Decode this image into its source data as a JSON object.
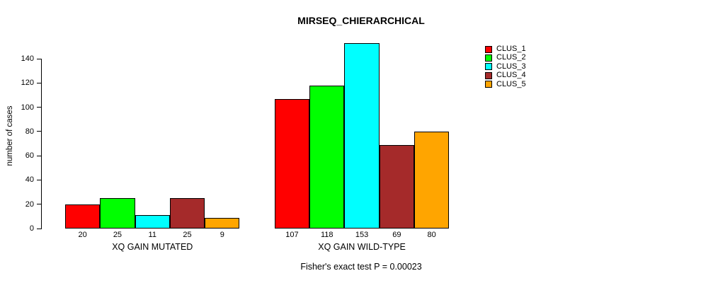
{
  "figure": {
    "title": "MIRSEQ_CHIERARCHICAL",
    "subtitle": "Fisher's exact test P = 0.00023",
    "ylabel": "number of cases"
  },
  "chart_data": {
    "type": "bar",
    "title": "MIRSEQ_CHIERARCHICAL",
    "ylabel": "number of cases",
    "xlabel": "",
    "categories": [
      "XQ GAIN MUTATED",
      "XQ GAIN WILD-TYPE"
    ],
    "series": [
      {
        "name": "CLUS_1",
        "color": "#FF0000",
        "values": [
          20,
          107
        ]
      },
      {
        "name": "CLUS_2",
        "color": "#00FF00",
        "values": [
          25,
          118
        ]
      },
      {
        "name": "CLUS_3",
        "color": "#00FFFF",
        "values": [
          11,
          153
        ]
      },
      {
        "name": "CLUS_4",
        "color": "#A52A2A",
        "values": [
          25,
          69
        ]
      },
      {
        "name": "CLUS_5",
        "color": "#FFA500",
        "values": [
          9,
          80
        ]
      }
    ],
    "y_ticks": [
      0,
      20,
      40,
      60,
      80,
      100,
      120,
      140
    ],
    "ylim": [
      0,
      140
    ],
    "grid": false,
    "bar_value_labels_shown": true,
    "legend_position": "right",
    "annotation": "Fisher's exact test P = 0.00023"
  }
}
